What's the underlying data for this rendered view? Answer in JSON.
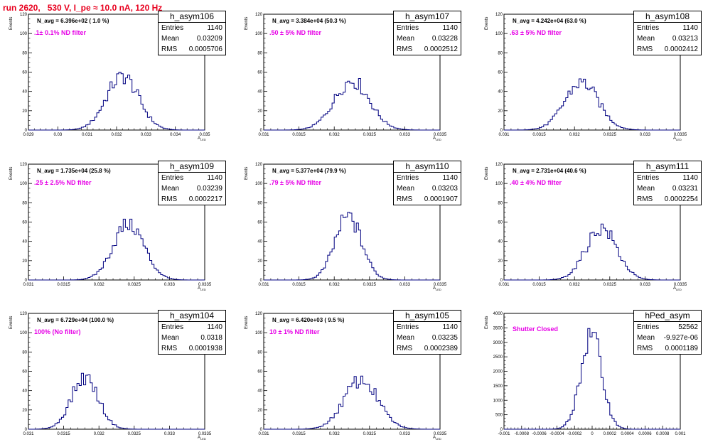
{
  "page": {
    "title": "run 2620,   530 V, I_pe ≈ 10.0 nA, 120 Hz"
  },
  "chart_data": [
    {
      "type": "histogram",
      "name": "h_asym106",
      "stats": {
        "Entries": "1140",
        "Mean": "0.03209",
        "RMS": "0.0005706"
      },
      "n_avg": "N_avg = 6.396e+02 ( 1.0 %)",
      "filter": ".1± 0.1% ND filter",
      "ylabel": "Events",
      "xlabel": "A_LED",
      "xlim": [
        0.029,
        0.035
      ],
      "ylim": [
        0,
        120
      ],
      "x_ticks": [
        "0.029",
        "0.03",
        "0.031",
        "0.032",
        "0.033",
        "0.034",
        "0.035"
      ],
      "y_ticks": [
        "0",
        "20",
        "40",
        "60",
        "80",
        "100",
        "120"
      ],
      "peak": 0.0322,
      "sigma": 0.00055,
      "max": 60
    },
    {
      "type": "histogram",
      "name": "h_asym107",
      "stats": {
        "Entries": "1140",
        "Mean": "0.03228",
        "RMS": "0.0002512"
      },
      "n_avg": "N_avg = 3.384e+04 (50.3 %)",
      "filter": ".50 ± 5% ND filter",
      "ylabel": "Events",
      "xlabel": "A_LED",
      "xlim": [
        0.031,
        0.0335
      ],
      "ylim": [
        0,
        120
      ],
      "x_ticks": [
        "0.031",
        "0.0315",
        "0.032",
        "0.0325",
        "0.033",
        "0.0335"
      ],
      "y_ticks": [
        "0",
        "20",
        "40",
        "60",
        "80",
        "100",
        "120"
      ],
      "peak": 0.03225,
      "sigma": 0.00025,
      "max": 55
    },
    {
      "type": "histogram",
      "name": "h_asym108",
      "stats": {
        "Entries": "1140",
        "Mean": "0.03213",
        "RMS": "0.0002412"
      },
      "n_avg": "N_avg = 4.242e+04 (63.0 %)",
      "filter": ".63 ± 5% ND filter",
      "ylabel": "Events",
      "xlabel": "A_LED",
      "xlim": [
        0.031,
        0.0335
      ],
      "ylim": [
        0,
        120
      ],
      "x_ticks": [
        "0.031",
        "0.0315",
        "0.032",
        "0.0325",
        "0.033",
        "0.0335"
      ],
      "y_ticks": [
        "0",
        "20",
        "40",
        "60",
        "80",
        "100",
        "120"
      ],
      "peak": 0.0321,
      "sigma": 0.00024,
      "max": 53
    },
    {
      "type": "histogram",
      "name": "h_asym109",
      "stats": {
        "Entries": "1140",
        "Mean": "0.03239",
        "RMS": "0.0002217"
      },
      "n_avg": "N_avg = 1.735e+04 (25.8 %)",
      "filter": ".25 ± 2.5% ND filter",
      "ylabel": "Events",
      "xlabel": "A_LED",
      "xlim": [
        0.031,
        0.0335
      ],
      "ylim": [
        0,
        120
      ],
      "x_ticks": [
        "0.031",
        "0.0315",
        "0.032",
        "0.0325",
        "0.033",
        "0.0335"
      ],
      "y_ticks": [
        "0",
        "20",
        "40",
        "60",
        "80",
        "100",
        "120"
      ],
      "peak": 0.03242,
      "sigma": 0.00022,
      "max": 63
    },
    {
      "type": "histogram",
      "name": "h_asym110",
      "stats": {
        "Entries": "1140",
        "Mean": "0.03203",
        "RMS": "0.0001907"
      },
      "n_avg": "N_avg = 5.377e+04 (79.9 %)",
      "filter": ".79 ± 5% ND filter",
      "ylabel": "Events",
      "xlabel": "A_LED",
      "xlim": [
        0.031,
        0.0335
      ],
      "ylim": [
        0,
        120
      ],
      "x_ticks": [
        "0.031",
        "0.0315",
        "0.032",
        "0.0325",
        "0.033",
        "0.0335"
      ],
      "y_ticks": [
        "0",
        "20",
        "40",
        "60",
        "80",
        "100",
        "120"
      ],
      "peak": 0.0322,
      "sigma": 0.00019,
      "max": 70
    },
    {
      "type": "histogram",
      "name": "h_asym111",
      "stats": {
        "Entries": "1140",
        "Mean": "0.03231",
        "RMS": "0.0002254"
      },
      "n_avg": "N_avg = 2.731e+04 (40.6 %)",
      "filter": ".40 ± 4% ND filter",
      "ylabel": "Events",
      "xlabel": "A_LED",
      "xlim": [
        0.031,
        0.0335
      ],
      "ylim": [
        0,
        120
      ],
      "x_ticks": [
        "0.031",
        "0.0315",
        "0.032",
        "0.0325",
        "0.033",
        "0.0335"
      ],
      "y_ticks": [
        "0",
        "20",
        "40",
        "60",
        "80",
        "100",
        "120"
      ],
      "peak": 0.03238,
      "sigma": 0.00022,
      "max": 58
    },
    {
      "type": "histogram",
      "name": "h_asym104",
      "stats": {
        "Entries": "1140",
        "Mean": "0.0318",
        "RMS": "0.0001938"
      },
      "n_avg": "N_avg = 6.729e+04 (100.0 %)",
      "filter": "100% (No filter)",
      "ylabel": "Events",
      "xlabel": "A_LED",
      "xlim": [
        0.031,
        0.0335
      ],
      "ylim": [
        0,
        120
      ],
      "x_ticks": [
        "0.031",
        "0.0315",
        "0.032",
        "0.0325",
        "0.033",
        "0.0335"
      ],
      "y_ticks": [
        "0",
        "20",
        "40",
        "60",
        "80",
        "100",
        "120"
      ],
      "peak": 0.0318,
      "sigma": 0.00019,
      "max": 58
    },
    {
      "type": "histogram",
      "name": "h_asym105",
      "stats": {
        "Entries": "1140",
        "Mean": "0.03235",
        "RMS": "0.0002389"
      },
      "n_avg": "N_avg = 6.420e+03 ( 9.5 %)",
      "filter": "10 ± 1% ND filter",
      "ylabel": "Events",
      "xlabel": "A_LED",
      "xlim": [
        0.031,
        0.0335
      ],
      "ylim": [
        0,
        120
      ],
      "x_ticks": [
        "0.031",
        "0.0315",
        "0.032",
        "0.0325",
        "0.033",
        "0.0335"
      ],
      "y_ticks": [
        "0",
        "20",
        "40",
        "60",
        "80",
        "100",
        "120"
      ],
      "peak": 0.03238,
      "sigma": 0.00024,
      "max": 55
    },
    {
      "type": "histogram",
      "name": "hPed_asym",
      "stats": {
        "Entries": "52562",
        "Mean": "-9.927e-06",
        "RMS": "0.0001189"
      },
      "n_avg": "",
      "filter": "Shutter Closed",
      "ylabel": "Events",
      "xlabel": "",
      "xlim": [
        -0.001,
        0.001
      ],
      "ylim": [
        0,
        4000
      ],
      "x_ticks": [
        "-0.001",
        "-0.0008",
        "-0.0006",
        "-0.0004",
        "-0.0002",
        "0",
        "0.0002",
        "0.0004",
        "0.0006",
        "0.0008",
        "0.001"
      ],
      "y_ticks": [
        "0",
        "500",
        "1000",
        "1500",
        "2000",
        "2500",
        "3000",
        "3500",
        "4000"
      ],
      "peak": -1e-05,
      "sigma": 0.00012,
      "max": 3480
    }
  ]
}
